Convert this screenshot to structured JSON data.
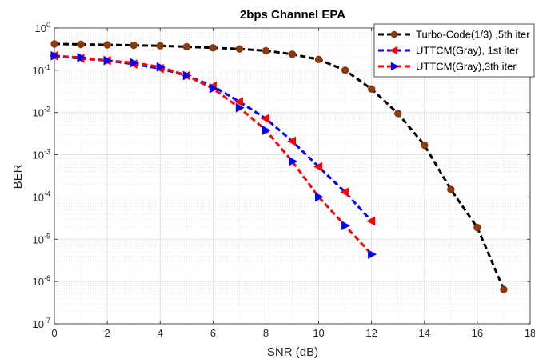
{
  "chart_data": {
    "type": "line",
    "title": "2bps Channel EPA",
    "xlabel": "SNR (dB)",
    "ylabel": "BER",
    "xlim": [
      0,
      18
    ],
    "ylim": [
      1e-07,
      1
    ],
    "yscale": "log",
    "grid": true,
    "minor_grid": true,
    "legend_position": "top-right",
    "x_ticks": [
      "0",
      "2",
      "4",
      "6",
      "8",
      "10",
      "12",
      "14",
      "16",
      "18"
    ],
    "y_ticks": [
      {
        "base": "10",
        "exp": "0",
        "value": 1
      },
      {
        "base": "10",
        "exp": "-1",
        "value": 0.1
      },
      {
        "base": "10",
        "exp": "-2",
        "value": 0.01
      },
      {
        "base": "10",
        "exp": "-3",
        "value": 0.001
      },
      {
        "base": "10",
        "exp": "-4",
        "value": 0.0001
      },
      {
        "base": "10",
        "exp": "-5",
        "value": 1e-05
      },
      {
        "base": "10",
        "exp": "-6",
        "value": 1e-06
      },
      {
        "base": "10",
        "exp": "-7",
        "value": 1e-07
      }
    ],
    "series": [
      {
        "name": "Turbo-Code(1/3) ,5th iter",
        "line_color": "#000000",
        "marker_color": "#8b3a0e",
        "marker": "circle",
        "x": [
          0,
          1,
          2,
          3,
          4,
          5,
          6,
          7,
          8,
          9,
          10,
          11,
          12,
          13,
          14,
          15,
          16,
          17
        ],
        "y": [
          0.42,
          0.41,
          0.4,
          0.39,
          0.38,
          0.36,
          0.34,
          0.32,
          0.29,
          0.24,
          0.18,
          0.1,
          0.036,
          0.0095,
          0.0017,
          0.00015,
          1.9e-05,
          6.5e-07
        ]
      },
      {
        "name": "UTTCM(Gray), 1st iter",
        "line_color": "#0000ff",
        "marker_color": "#ff0000",
        "marker": "triangle-left",
        "x": [
          0,
          1,
          2,
          3,
          4,
          5,
          6,
          7,
          8,
          9,
          10,
          11,
          12
        ],
        "y": [
          0.22,
          0.19,
          0.17,
          0.14,
          0.11,
          0.075,
          0.042,
          0.018,
          0.0072,
          0.0021,
          0.00052,
          0.00013,
          2.7e-05
        ]
      },
      {
        "name": "UTTCM(Gray),3th iter",
        "line_color": "#ff0000",
        "marker_color": "#0000ff",
        "marker": "triangle-right",
        "x": [
          0,
          1,
          2,
          3,
          4,
          5,
          6,
          7,
          8,
          9,
          10,
          11,
          12
        ],
        "y": [
          0.22,
          0.2,
          0.17,
          0.15,
          0.12,
          0.075,
          0.037,
          0.013,
          0.0038,
          0.0007,
          0.0001,
          2.1e-05,
          4.4e-06
        ]
      }
    ]
  }
}
